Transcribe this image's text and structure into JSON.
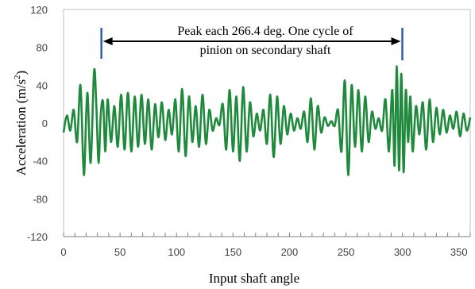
{
  "chart_data": {
    "type": "line",
    "title": "",
    "xlabel": "Input shaft angle",
    "ylabel_main": "Acceleration (m/s",
    "ylabel_sup": "2",
    "ylabel_close": ")",
    "xlim": [
      0,
      360
    ],
    "ylim": [
      -120,
      120
    ],
    "xticks": [
      0,
      50,
      100,
      150,
      200,
      250,
      300,
      350
    ],
    "yticks": [
      -120,
      -80,
      -40,
      0,
      40,
      80,
      120
    ],
    "grid": false,
    "legend": "none",
    "annotation": {
      "line1": "Peak each 266.4 deg. One cycle of",
      "line2": "pinion on secondary shaft",
      "x_start": 33.5,
      "x_end": 299.9
    },
    "series": [
      {
        "color": "#1f8a3c",
        "x": [
          0,
          3,
          6,
          9,
          12,
          15,
          18,
          21,
          24,
          27,
          29,
          31,
          33,
          35,
          37,
          39,
          42,
          45,
          48,
          51,
          54,
          57,
          60,
          63,
          66,
          69,
          72,
          75,
          78,
          81,
          84,
          87,
          90,
          93,
          96,
          99,
          102,
          105,
          108,
          111,
          114,
          117,
          120,
          123,
          126,
          129,
          132,
          135,
          138,
          141,
          144,
          147,
          150,
          153,
          156,
          159,
          162,
          165,
          168,
          171,
          174,
          177,
          180,
          183,
          186,
          189,
          192,
          195,
          198,
          201,
          204,
          207,
          210,
          213,
          216,
          219,
          222,
          225,
          228,
          231,
          234,
          237,
          240,
          243,
          246,
          249,
          252,
          255,
          258,
          261,
          264,
          267,
          270,
          273,
          276,
          279,
          282,
          285,
          288,
          291,
          293,
          295,
          297,
          299,
          301,
          303,
          305,
          307,
          309,
          312,
          315,
          318,
          321,
          324,
          327,
          330,
          333,
          336,
          339,
          342,
          345,
          348,
          351,
          354,
          357,
          360
        ],
        "y": [
          -10,
          8,
          -8,
          14,
          -20,
          40,
          -55,
          32,
          -42,
          55,
          20,
          -42,
          10,
          22,
          -30,
          25,
          -20,
          18,
          -25,
          30,
          -28,
          32,
          -30,
          28,
          -25,
          30,
          -22,
          25,
          -28,
          20,
          -15,
          22,
          -18,
          14,
          -12,
          25,
          -30,
          36,
          -35,
          28,
          -20,
          18,
          -25,
          30,
          -22,
          14,
          -8,
          5,
          -2,
          20,
          -28,
          35,
          -30,
          28,
          -40,
          38,
          -30,
          22,
          -14,
          10,
          -8,
          14,
          -22,
          30,
          -36,
          28,
          -22,
          18,
          -12,
          10,
          -8,
          5,
          -6,
          12,
          -20,
          26,
          -28,
          18,
          -10,
          6,
          -3,
          2,
          -3,
          14,
          -30,
          45,
          -55,
          40,
          -25,
          35,
          -30,
          28,
          -20,
          12,
          -6,
          5,
          -8,
          25,
          -30,
          35,
          -45,
          60,
          -50,
          52,
          -52,
          35,
          -20,
          28,
          -30,
          18,
          -12,
          22,
          -28,
          25,
          -20,
          16,
          -12,
          14,
          -10,
          8,
          -6,
          12,
          -14,
          10,
          -8,
          6
        ]
      }
    ]
  }
}
